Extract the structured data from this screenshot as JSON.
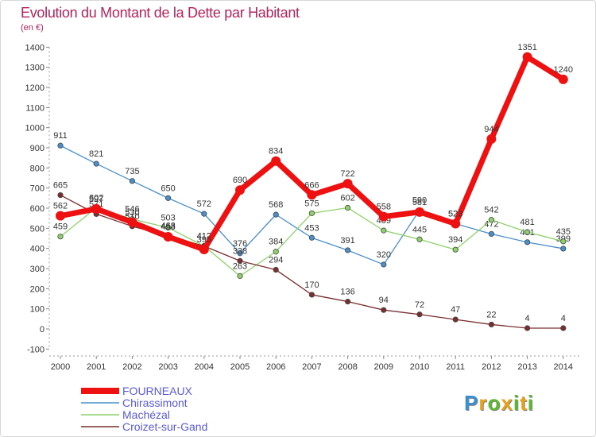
{
  "title": "Evolution du Montant de la Dette par Habitant",
  "subtitle": "(en €)",
  "logo": {
    "letters": [
      "P",
      "r",
      "o",
      "x",
      "i",
      "t",
      "i"
    ],
    "colors": [
      "#3a8fd1",
      "#e8a21a",
      "#5cb82f",
      "#e8a21a",
      "#5cb82f",
      "#e8a21a",
      "#5cb82f"
    ]
  },
  "chart_data": {
    "type": "line",
    "title": "Evolution du Montant de la Dette par Habitant",
    "ylabel": "(en €)",
    "xlabel": "",
    "categories": [
      "2000",
      "2001",
      "2002",
      "2003",
      "2004",
      "2005",
      "2006",
      "2007",
      "2008",
      "2009",
      "2010",
      "2011",
      "2012",
      "2013",
      "2014"
    ],
    "ylim": [
      -100,
      1400
    ],
    "yticks": [
      -100,
      0,
      100,
      200,
      300,
      400,
      500,
      600,
      700,
      800,
      900,
      1000,
      1100,
      1200,
      1300,
      1400
    ],
    "grid": false,
    "legend_position": "bottom-left",
    "series": [
      {
        "name": "Chirassimont",
        "color": "#4a8fcb",
        "values": [
          911,
          821,
          735,
          650,
          572,
          376,
          568,
          453,
          391,
          320,
          590,
          523,
          472,
          431,
          399
        ]
      },
      {
        "name": "Machézal",
        "color": "#8ed16a",
        "values": [
          459,
          602,
          546,
          503,
          412,
          263,
          384,
          575,
          602,
          489,
          445,
          394,
          542,
          481,
          435
        ]
      },
      {
        "name": "Croizet-sur-Gand",
        "color": "#7a2e2e",
        "values": [
          665,
          571,
          510,
          463,
          412,
          338,
          294,
          170,
          136,
          94,
          72,
          47,
          22,
          4,
          4
        ]
      },
      {
        "name": "FOURNEAUX",
        "color": "#ee1111",
        "values": [
          562,
          597,
          530,
          458,
          395,
          690,
          834,
          666,
          722,
          558,
          581,
          523,
          944,
          1351,
          1240
        ]
      }
    ]
  }
}
